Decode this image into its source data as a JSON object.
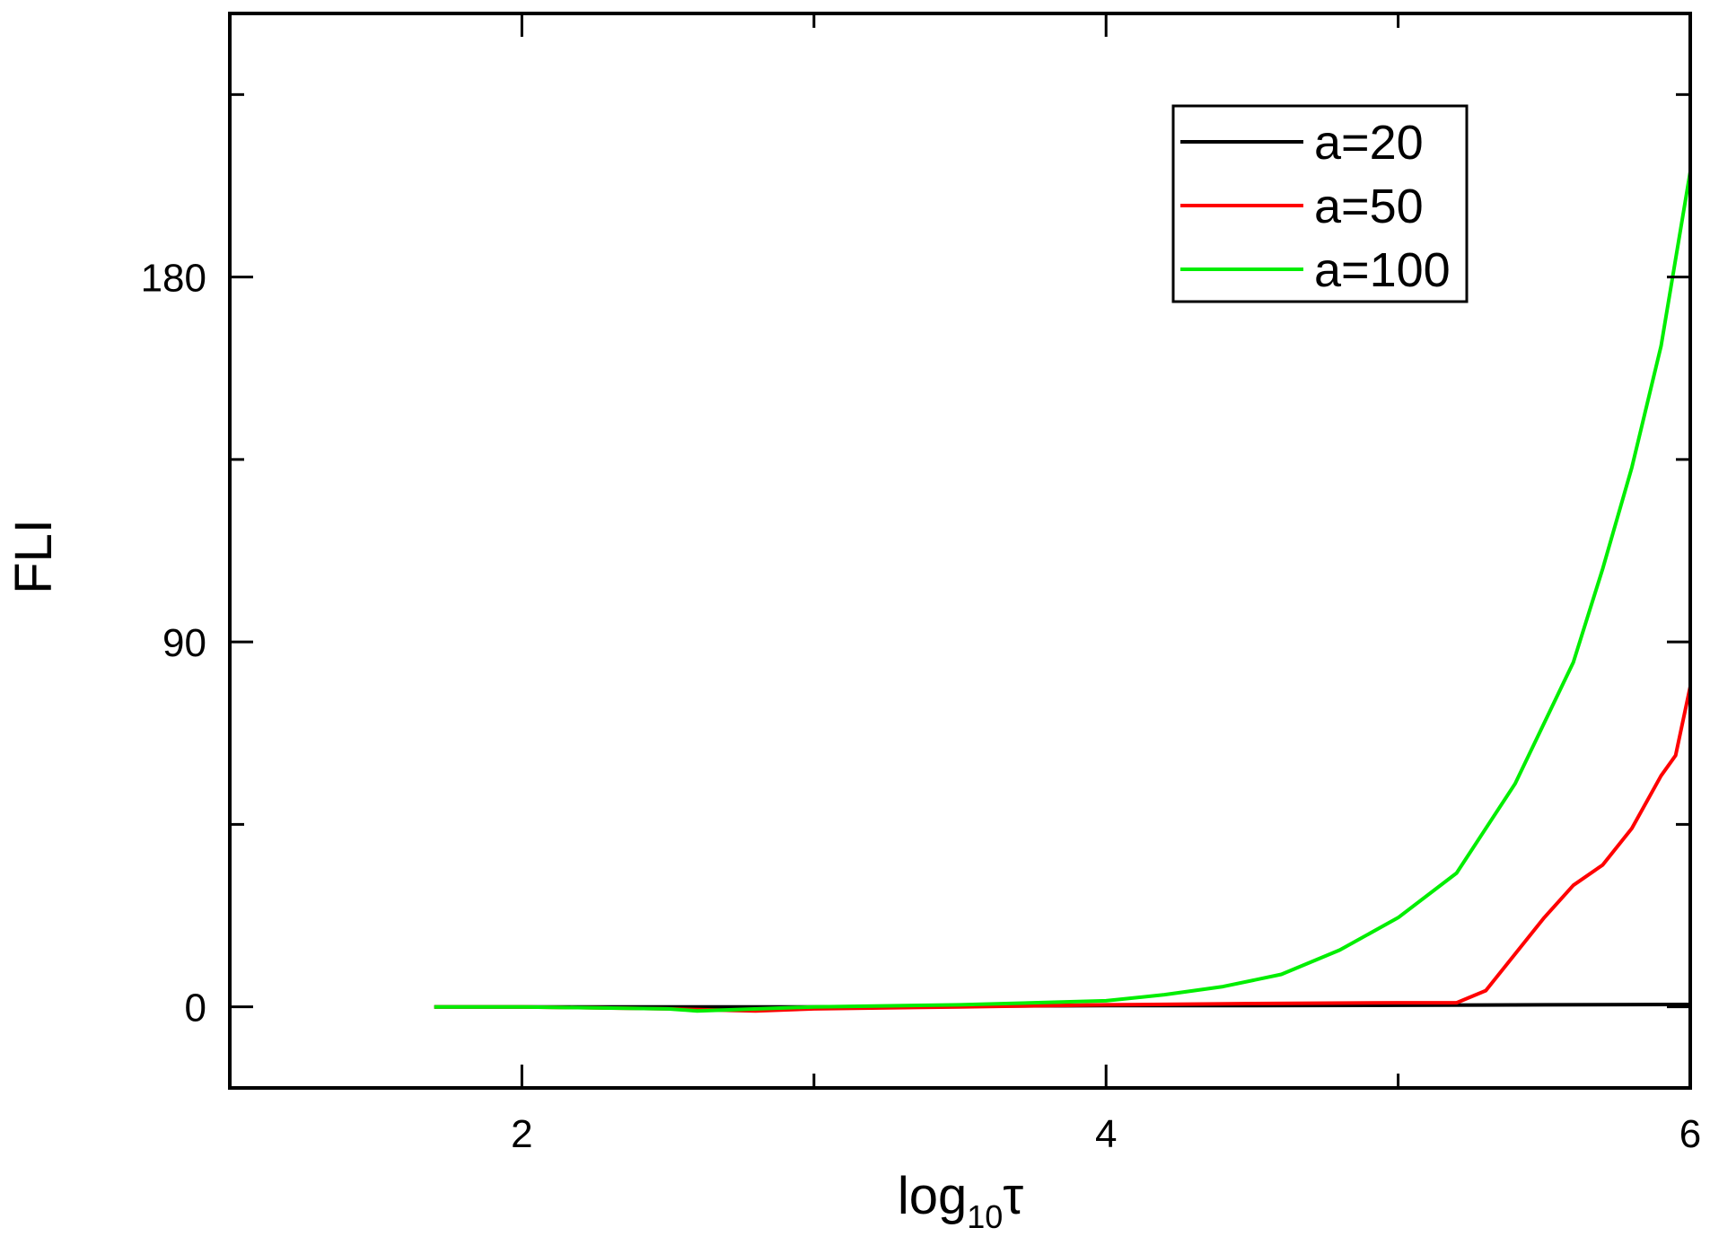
{
  "chart_data": {
    "type": "line",
    "title": "",
    "xlabel": {
      "base": "log",
      "sub": "10",
      "sym": "τ"
    },
    "ylabel": "FLI",
    "xlim": [
      1,
      6
    ],
    "ylim": [
      -20,
      245
    ],
    "x_ticks_labeled": [
      "2",
      "4",
      "6"
    ],
    "x_tick_values": [
      2,
      4,
      6
    ],
    "x_minor_tick_values": [
      3,
      5
    ],
    "y_ticks_labeled": [
      "0",
      "90",
      "180"
    ],
    "y_tick_values": [
      0,
      90,
      180
    ],
    "y_minor_tick_values": [
      45,
      135,
      225
    ],
    "grid": false,
    "legend": "top-right",
    "series": [
      {
        "name": "a=20",
        "color": "#000000",
        "x": [
          1.7,
          2.0,
          2.5,
          3.0,
          3.5,
          4.0,
          4.5,
          5.0,
          5.5,
          6.0
        ],
        "y": [
          0,
          0,
          0,
          0,
          0.2,
          0.3,
          0.3,
          0.4,
          0.5,
          0.6
        ]
      },
      {
        "name": "a=50",
        "color": "#ff0000",
        "x": [
          1.7,
          2.0,
          2.5,
          2.8,
          3.0,
          3.5,
          4.0,
          4.5,
          5.0,
          5.2,
          5.3,
          5.4,
          5.5,
          5.6,
          5.7,
          5.8,
          5.9,
          5.95,
          6.0
        ],
        "y": [
          0,
          0,
          -0.5,
          -1,
          -0.5,
          0,
          0.5,
          0.8,
          1,
          1,
          4,
          13,
          22,
          30,
          35,
          44,
          57,
          62,
          79
        ]
      },
      {
        "name": "a=100",
        "color": "#00ee00",
        "x": [
          1.7,
          2.0,
          2.5,
          2.6,
          3.0,
          3.5,
          4.0,
          4.2,
          4.4,
          4.6,
          4.8,
          5.0,
          5.2,
          5.4,
          5.6,
          5.7,
          5.8,
          5.9,
          6.0
        ],
        "y": [
          0,
          0,
          -0.5,
          -1,
          0,
          0.5,
          1.5,
          3,
          5,
          8,
          14,
          22,
          33,
          55,
          85,
          108,
          133,
          163,
          206
        ]
      }
    ]
  }
}
